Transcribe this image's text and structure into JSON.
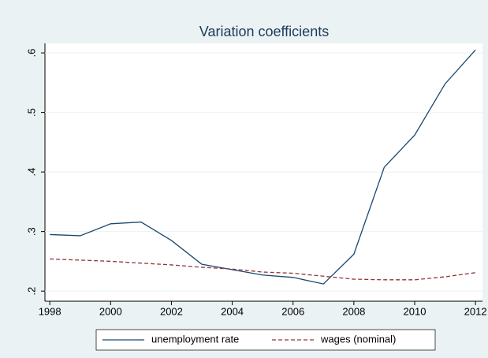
{
  "chart_data": {
    "type": "line",
    "title": "Variation coefficients",
    "x": [
      1998,
      1999,
      2000,
      2001,
      2002,
      2003,
      2004,
      2005,
      2006,
      2007,
      2008,
      2009,
      2010,
      2011,
      2012
    ],
    "series": [
      {
        "name": "unemployment rate",
        "color": "#1a476f",
        "dash": false,
        "values": [
          0.295,
          0.293,
          0.313,
          0.316,
          0.285,
          0.245,
          0.236,
          0.227,
          0.223,
          0.212,
          0.262,
          0.408,
          0.462,
          0.548,
          0.605
        ]
      },
      {
        "name": "wages (nominal)",
        "color": "#90353b",
        "dash": true,
        "values": [
          0.254,
          0.252,
          0.25,
          0.247,
          0.244,
          0.24,
          0.237,
          0.232,
          0.23,
          0.225,
          0.22,
          0.219,
          0.219,
          0.224,
          0.231
        ]
      }
    ],
    "xlim": [
      1997.84,
      2012.23
    ],
    "xticks": [
      1998,
      2000,
      2002,
      2004,
      2006,
      2008,
      2010,
      2012
    ],
    "ylim": [
      0.183,
      0.616
    ],
    "yticks": [
      {
        "value": 0.2,
        "label": ".2"
      },
      {
        "value": 0.3,
        "label": ".3"
      },
      {
        "value": 0.4,
        "label": ".4"
      },
      {
        "value": 0.5,
        "label": ".5"
      },
      {
        "value": 0.6,
        "label": ".6"
      }
    ],
    "grid": true,
    "legend": "bottom"
  }
}
